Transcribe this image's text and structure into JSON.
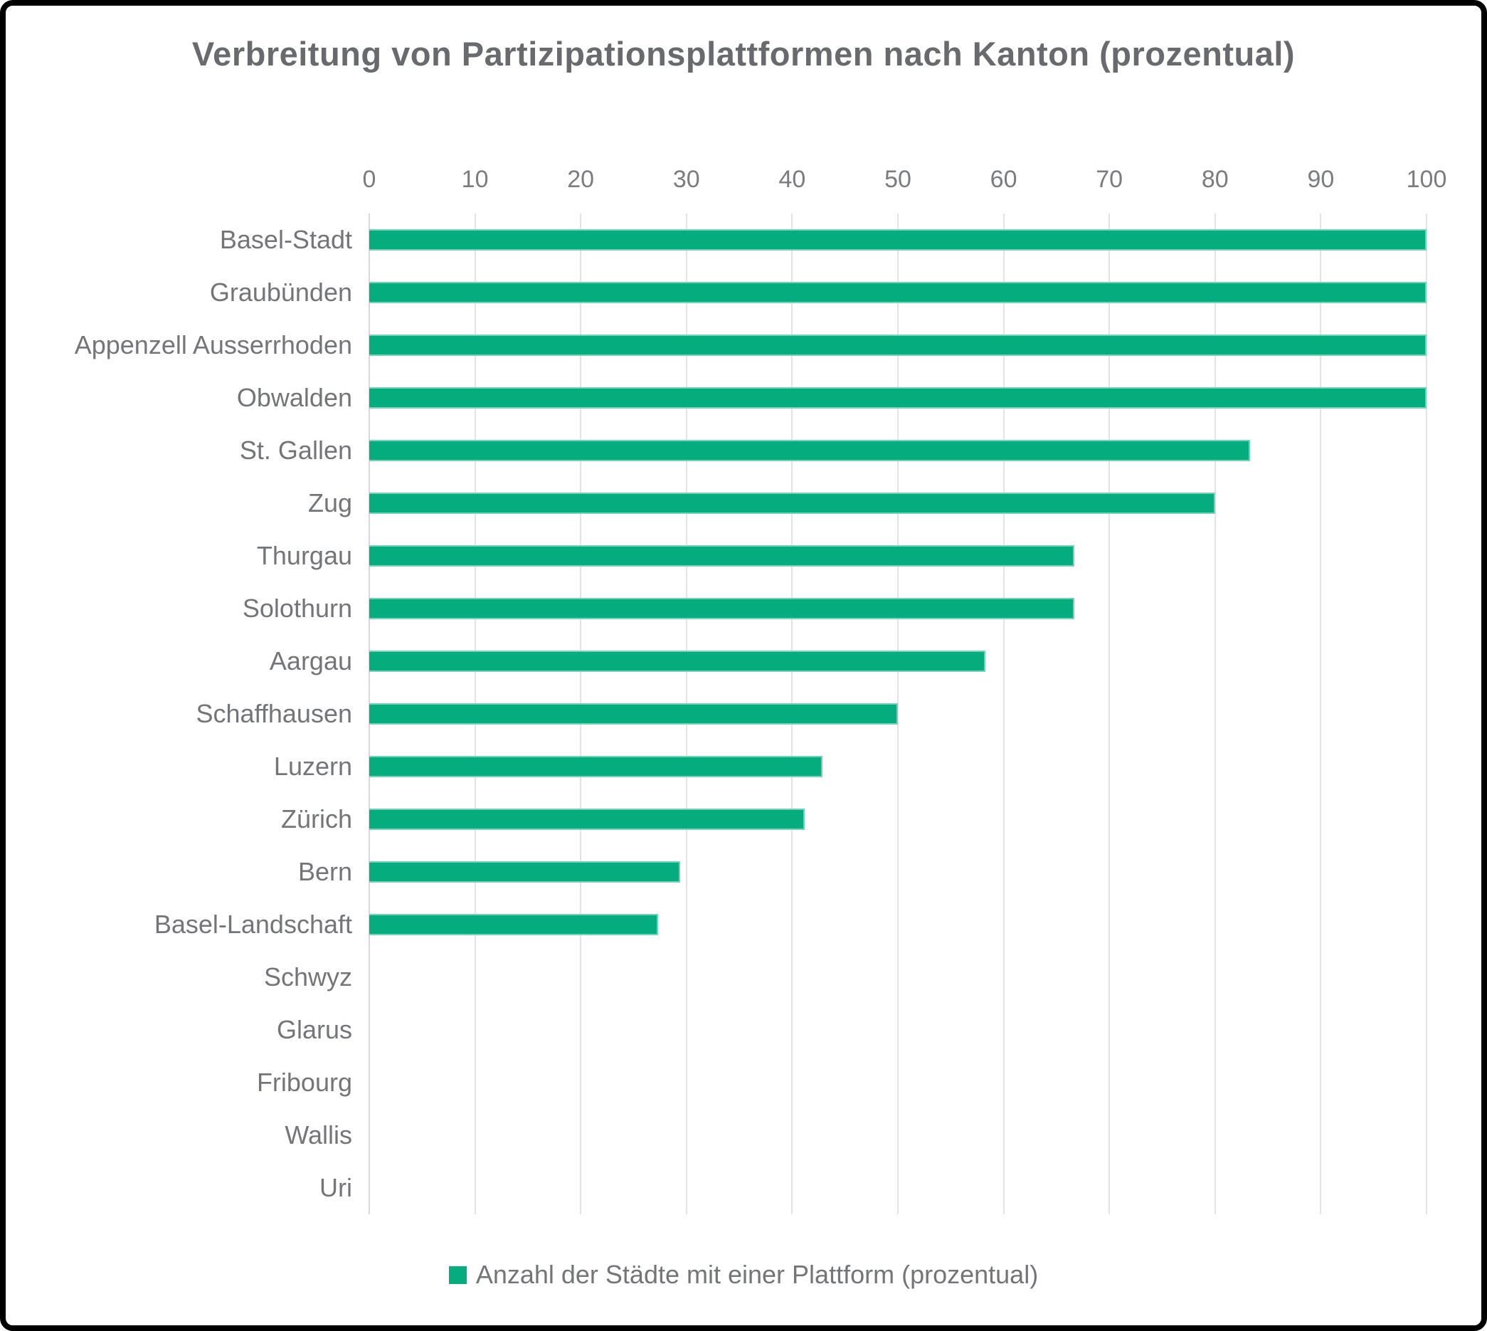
{
  "chart_data": {
    "type": "bar",
    "orientation": "horizontal",
    "title": "Verbreitung von Partizipationsplattformen nach Kanton (prozentual)",
    "categories": [
      "Basel-Stadt",
      "Graubünden",
      "Appenzell Ausserrhoden",
      "Obwalden",
      "St. Gallen",
      "Zug",
      "Thurgau",
      "Solothurn",
      "Aargau",
      "Schaffhausen",
      "Luzern",
      "Zürich",
      "Bern",
      "Basel-Landschaft",
      "Schwyz",
      "Glarus",
      "Fribourg",
      "Wallis",
      "Uri"
    ],
    "values": [
      100,
      100,
      100,
      100,
      83.3,
      80,
      66.7,
      66.7,
      58.3,
      50,
      42.9,
      41.2,
      29.4,
      27.3,
      0,
      0,
      0,
      0,
      0
    ],
    "series": [
      {
        "name": "Anzahl der Städte mit einer Plattform (prozentual)",
        "values": [
          100,
          100,
          100,
          100,
          83.3,
          80,
          66.7,
          66.7,
          58.3,
          50,
          42.9,
          41.2,
          29.4,
          27.3,
          0,
          0,
          0,
          0,
          0
        ]
      }
    ],
    "xlabel": "",
    "ylabel": "",
    "xlim": [
      0,
      100
    ],
    "x_ticks": [
      "0",
      "10",
      "20",
      "30",
      "40",
      "50",
      "60",
      "70",
      "80",
      "90",
      "100"
    ],
    "grid": "vertical gridlines on",
    "legend_position": "bottom"
  },
  "legend": {
    "label": "Anzahl der Städte mit einer Plattform (prozentual)"
  },
  "colors": {
    "bar": "#05ac7e",
    "title_text": "#696a6d",
    "axis_text": "#7b7c7f",
    "category_text": "#747579",
    "gridline": "#e4e4e6",
    "zero_line": "#d9d9db",
    "background": "#ffffff",
    "frame_border": "#000000"
  }
}
